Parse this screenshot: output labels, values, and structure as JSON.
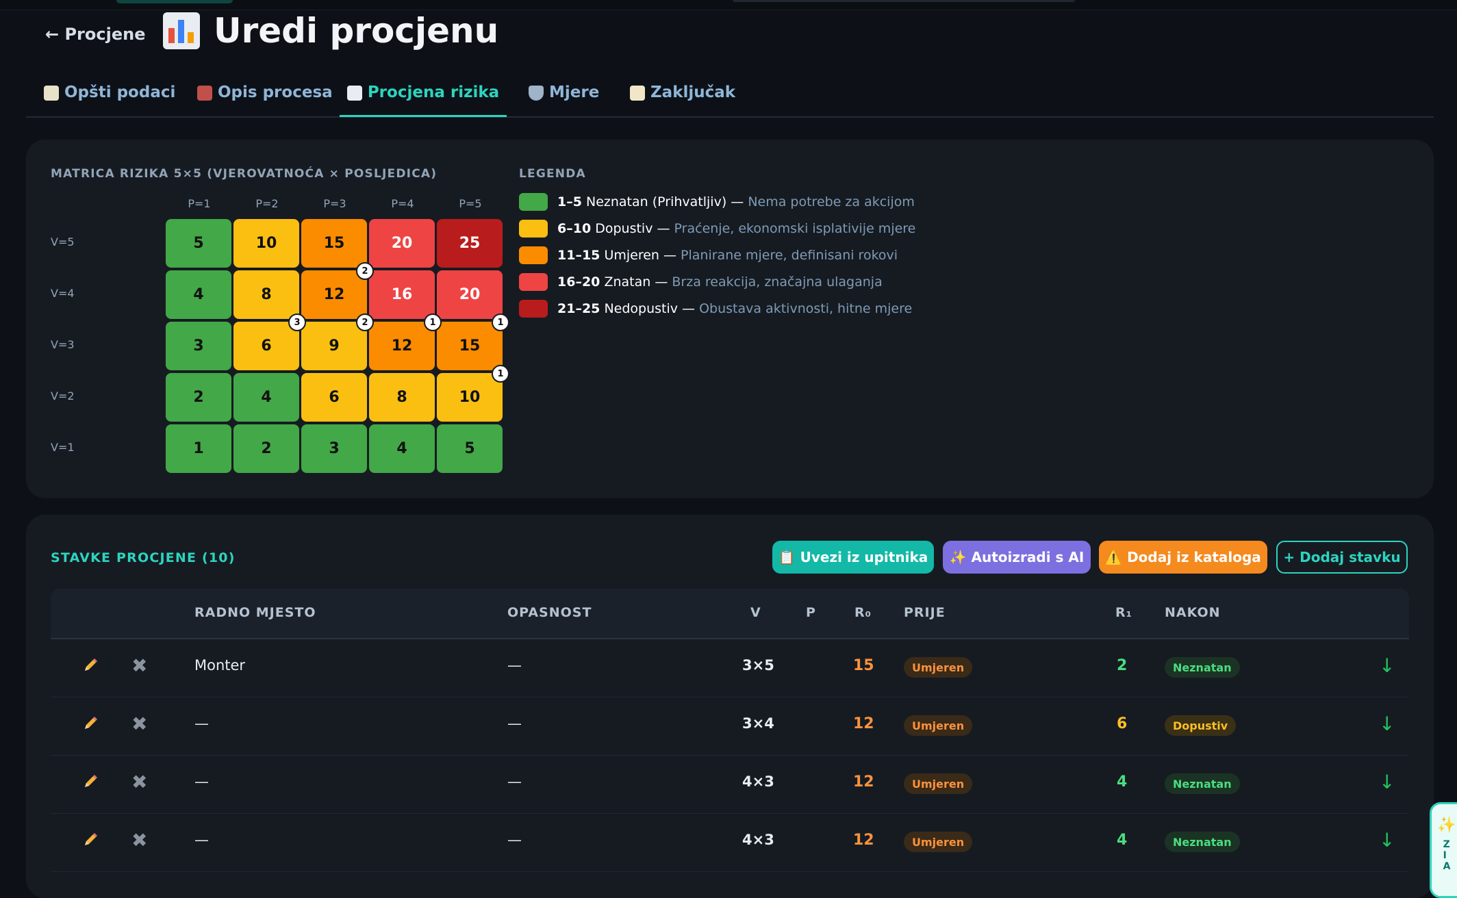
{
  "header": {
    "back_label": "← Procjene",
    "title": "Uredi procjenu",
    "title_icon": "bar-chart-icon"
  },
  "tabs": [
    {
      "label": "Opšti podaci",
      "icon": "clipboard-icon",
      "active": false
    },
    {
      "label": "Opis procesa",
      "icon": "factory-icon",
      "active": false
    },
    {
      "label": "Procjena rizika",
      "icon": "bar-chart-icon",
      "active": true
    },
    {
      "label": "Mjere",
      "icon": "shield-icon",
      "active": false
    },
    {
      "label": "Zaključak",
      "icon": "memo-icon",
      "active": false
    }
  ],
  "matrix": {
    "title": "MATRICA RIZIKA 5×5 (VJEROVATNOĆA × POSLJEDICA)",
    "col_headers": [
      "P=1",
      "P=2",
      "P=3",
      "P=4",
      "P=5"
    ],
    "rows": [
      {
        "label": "V=5",
        "cells": [
          "5",
          "10",
          "15",
          "20",
          "25"
        ],
        "colors": [
          "green",
          "yellow",
          "orange",
          "red",
          "dred"
        ]
      },
      {
        "label": "V=4",
        "cells": [
          "4",
          "8",
          "12",
          "16",
          "20"
        ],
        "colors": [
          "green",
          "yellow",
          "orange",
          "red",
          "red"
        ]
      },
      {
        "label": "V=3",
        "cells": [
          "3",
          "6",
          "9",
          "12",
          "15"
        ],
        "colors": [
          "green",
          "yellow",
          "yellow",
          "orange",
          "orange"
        ]
      },
      {
        "label": "V=2",
        "cells": [
          "2",
          "4",
          "6",
          "8",
          "10"
        ],
        "colors": [
          "green",
          "green",
          "yellow",
          "yellow",
          "yellow"
        ]
      },
      {
        "label": "V=1",
        "cells": [
          "1",
          "2",
          "3",
          "4",
          "5"
        ],
        "colors": [
          "green",
          "green",
          "green",
          "green",
          "green"
        ]
      }
    ],
    "counts": [
      {
        "row": 1,
        "col": 2,
        "value": "2"
      },
      {
        "row": 2,
        "col": 1,
        "value": "3"
      },
      {
        "row": 2,
        "col": 2,
        "value": "2"
      },
      {
        "row": 2,
        "col": 3,
        "value": "1"
      },
      {
        "row": 2,
        "col": 4,
        "value": "1"
      },
      {
        "row": 3,
        "col": 4,
        "value": "1"
      }
    ]
  },
  "legend": {
    "title": "LEGENDA",
    "items": [
      {
        "range": "1–5",
        "name": "Neznatan (Prihvatljiv) —",
        "desc": "Nema potrebe za akcijom",
        "color": "#43a847"
      },
      {
        "range": "6–10",
        "name": "Dopustiv —",
        "desc": "Praćenje, ekonomski isplativije mjere",
        "color": "#fbbf12"
      },
      {
        "range": "11–15",
        "name": "Umjeren —",
        "desc": "Planirane mjere, definisani rokovi",
        "color": "#fb8c00"
      },
      {
        "range": "16–20",
        "name": "Znatan —",
        "desc": "Brza reakcija, značajna ulaganja",
        "color": "#ef4444"
      },
      {
        "range": "21–25",
        "name": "Nedopustiv —",
        "desc": "Obustava aktivnosti, hitne mjere",
        "color": "#b91c1c"
      }
    ]
  },
  "items": {
    "title": "STAVKE PROCJENE (10)",
    "buttons": {
      "import": "📋 Uvezi iz upitnika",
      "ai": "✨ Autoizradi s AI",
      "catalog": "⚠️ Dodaj iz kataloga",
      "add": "+ Dodaj stavku"
    },
    "columns": {
      "workplace": "RADNO MJESTO",
      "hazard": "OPASNOST",
      "v": "V",
      "p": "P",
      "r0": "R₀",
      "before": "PRIJE",
      "r1": "R₁",
      "after": "NAKON"
    },
    "rows": [
      {
        "workplace": "Monter",
        "hazard": "—",
        "vp": "3×5",
        "r0": "15",
        "before": "Umjeren",
        "r1": "2",
        "after": "Neznatan"
      },
      {
        "workplace": "—",
        "hazard": "—",
        "vp": "3×4",
        "r0": "12",
        "before": "Umjeren",
        "r1": "6",
        "after": "Dopustiv"
      },
      {
        "workplace": "—",
        "hazard": "—",
        "vp": "4×3",
        "r0": "12",
        "before": "Umjeren",
        "r1": "4",
        "after": "Neznatan"
      },
      {
        "workplace": "—",
        "hazard": "—",
        "vp": "4×3",
        "r0": "12",
        "before": "Umjeren",
        "r1": "4",
        "after": "Neznatan"
      }
    ]
  },
  "fab": {
    "label": "ZIA",
    "icon": "sparkles-icon"
  }
}
